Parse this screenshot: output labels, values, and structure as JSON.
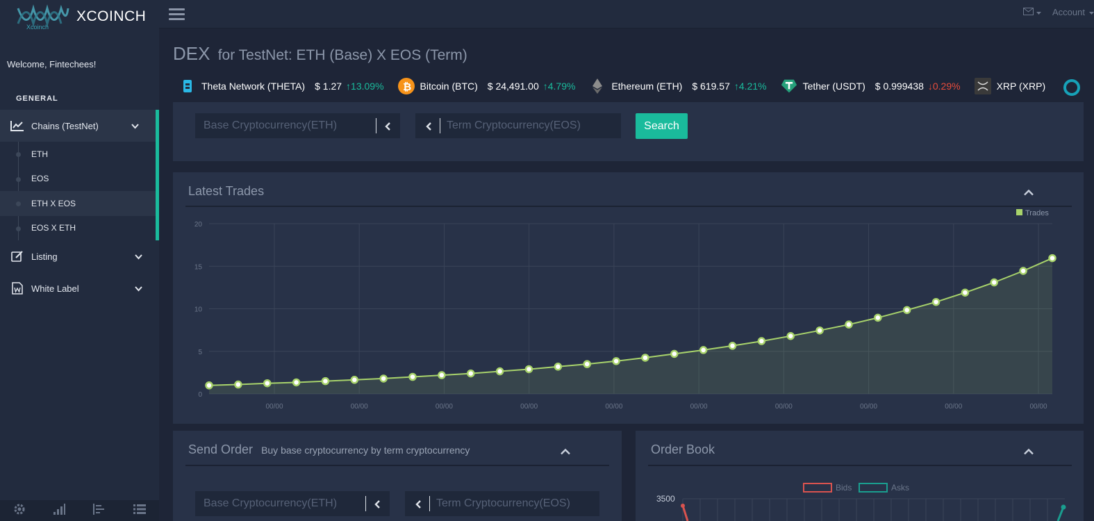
{
  "brand": {
    "name": "XCOINCH",
    "logo_text": "Xcoinch"
  },
  "sidebar": {
    "welcome": "Welcome, Fintechees!",
    "section": "GENERAL",
    "menu": [
      {
        "label": "Chains (TestNet)",
        "icon": "line-chart-icon",
        "active": true
      },
      {
        "label": "Listing",
        "icon": "edit-icon"
      },
      {
        "label": "White Label",
        "icon": "word-file-icon"
      }
    ],
    "submenu": [
      {
        "label": "ETH"
      },
      {
        "label": "EOS"
      },
      {
        "label": "ETH X EOS",
        "active": true
      },
      {
        "label": "EOS X ETH"
      }
    ],
    "footer_icons": [
      "settings-icon",
      "signal-icon",
      "align-icon",
      "list-icon"
    ]
  },
  "topnav": {
    "account": "Account"
  },
  "page": {
    "title": "DEX",
    "subtitle": "for TestNet: ETH (Base) X EOS (Term)"
  },
  "ticker": [
    {
      "name": "Theta Network (THETA)",
      "price": "$ 1.27",
      "change": "13.09%",
      "dir": "up",
      "icon": "theta-icon"
    },
    {
      "name": "Bitcoin (BTC)",
      "price": "$ 24,491.00",
      "change": "4.79%",
      "dir": "up",
      "icon": "bitcoin-icon"
    },
    {
      "name": "Ethereum (ETH)",
      "price": "$ 619.57",
      "change": "4.21%",
      "dir": "up",
      "icon": "ethereum-icon"
    },
    {
      "name": "Tether (USDT)",
      "price": "$ 0.999438",
      "change": "0.29%",
      "dir": "down",
      "icon": "tether-icon"
    },
    {
      "name": "XRP (XRP)",
      "price": "",
      "change": "",
      "dir": "",
      "icon": "xrp-icon"
    }
  ],
  "search": {
    "base_placeholder": "Base Cryptocurrency(ETH)",
    "term_placeholder": "Term Cryptocurrency(EOS)",
    "button": "Search"
  },
  "trades": {
    "title": "Latest Trades"
  },
  "send_order": {
    "title": "Send Order",
    "subtitle": "Buy base cryptocurrency by term cryptocurrency",
    "base_placeholder": "Base Cryptocurrency(ETH)",
    "term_placeholder": "Term Cryptocurrency(EOS)"
  },
  "order_book": {
    "title": "Order Book",
    "y_top": "3500",
    "legend": [
      "Bids",
      "Asks"
    ]
  },
  "colors": {
    "accent": "#1abb9c",
    "line": "#a8d36b",
    "down": "#e74c3c",
    "bids": "#d9534f",
    "asks": "#1a9e8f"
  },
  "chart_data": {
    "type": "line",
    "title": "",
    "legend": [
      "Trades"
    ],
    "legend_position": "top-right",
    "grid": true,
    "ylim": [
      0,
      20
    ],
    "yticks": [
      0,
      5,
      10,
      15,
      20
    ],
    "xtick_labels": [
      "00/00",
      "00/00",
      "00/00",
      "00/00",
      "00/00",
      "00/00",
      "00/00",
      "00/00",
      "00/00",
      "00/00"
    ],
    "series": [
      {
        "name": "Trades",
        "values": [
          1.0,
          1.1,
          1.25,
          1.35,
          1.5,
          1.65,
          1.8,
          2.0,
          2.2,
          2.4,
          2.65,
          2.9,
          3.2,
          3.5,
          3.85,
          4.25,
          4.7,
          5.15,
          5.65,
          6.2,
          6.8,
          7.45,
          8.15,
          8.95,
          9.85,
          10.8,
          11.9,
          13.1,
          14.45,
          15.95
        ]
      }
    ]
  }
}
